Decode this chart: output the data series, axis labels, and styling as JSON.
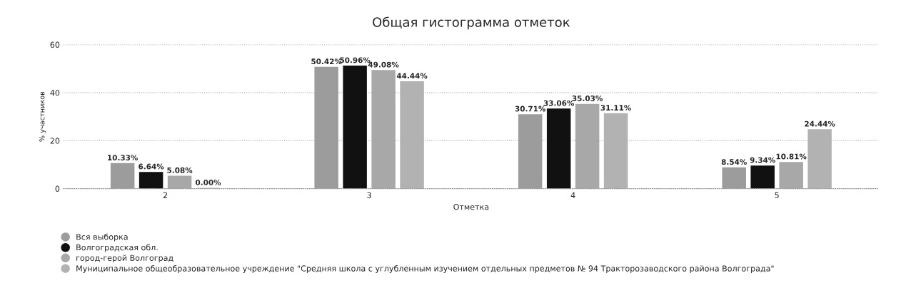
{
  "chart_data": {
    "type": "bar",
    "title": "Общая гистограмма отметок",
    "xlabel": "Отметка",
    "ylabel": "% участников",
    "categories": [
      "2",
      "3",
      "4",
      "5"
    ],
    "series": [
      {
        "name": "Вся выборка",
        "color": "#9c9c9c",
        "values": [
          10.33,
          50.42,
          30.71,
          8.54
        ],
        "value_labels": [
          "10.33%",
          "50.42%",
          "30.71%",
          "8.54%"
        ]
      },
      {
        "name": "Волгоградская обл.",
        "color": "#111111",
        "values": [
          6.64,
          50.96,
          33.06,
          9.34
        ],
        "value_labels": [
          "6.64%",
          "50.96%",
          "33.06%",
          "9.34%"
        ]
      },
      {
        "name": "город-герой Волгоград",
        "color": "#a8a8a8",
        "values": [
          5.08,
          49.08,
          35.03,
          10.81
        ],
        "value_labels": [
          "5.08%",
          "49.08%",
          "35.03%",
          "10.81%"
        ]
      },
      {
        "name": "Муниципальное общеобразовательное учреждение \"Средняя школа с углубленным изучением отдельных предметов № 94 Тракторозаводского района Волгограда\"",
        "color": "#b2b2b2",
        "values": [
          0.0,
          44.44,
          31.11,
          24.44
        ],
        "value_labels": [
          "0.00%",
          "44.44%",
          "31.11%",
          "24.44%"
        ]
      }
    ],
    "ylim": [
      0,
      60
    ],
    "yticks": [
      0,
      20,
      40,
      60
    ],
    "grid": "y",
    "legend": "bottom left"
  }
}
